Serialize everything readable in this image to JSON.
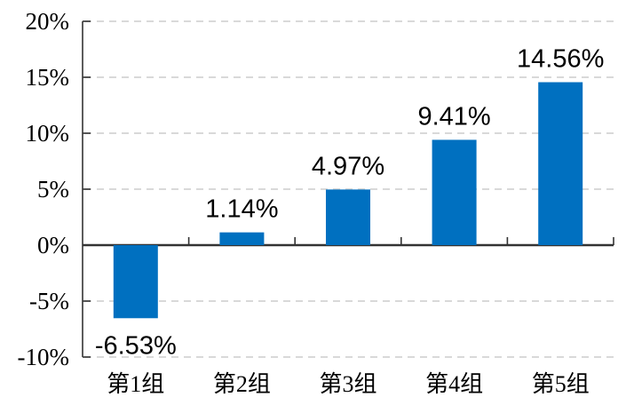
{
  "chart_data": {
    "type": "bar",
    "title": "",
    "xlabel": "",
    "ylabel": "",
    "categories": [
      "第1组",
      "第2组",
      "第3组",
      "第4组",
      "第5组"
    ],
    "values": [
      -6.53,
      1.14,
      4.97,
      9.41,
      14.56
    ],
    "data_labels": [
      "-6.53%",
      "1.14%",
      "4.97%",
      "9.41%",
      "14.56%"
    ],
    "y_ticks": [
      {
        "value": 20,
        "label": "20%"
      },
      {
        "value": 15,
        "label": "15%"
      },
      {
        "value": 10,
        "label": "10%"
      },
      {
        "value": 5,
        "label": "5%"
      },
      {
        "value": 0,
        "label": "0%"
      },
      {
        "value": -5,
        "label": "-5%"
      },
      {
        "value": -10,
        "label": "-10%"
      }
    ],
    "ylim": [
      -10,
      20
    ],
    "grid": "horizontal-dashed",
    "legend": "none",
    "single_series": true,
    "colors": {
      "bar": "#0070c0",
      "gridline": "#d9d9d9",
      "axis": "#333333",
      "text": "#000000",
      "background": "#ffffff"
    }
  }
}
